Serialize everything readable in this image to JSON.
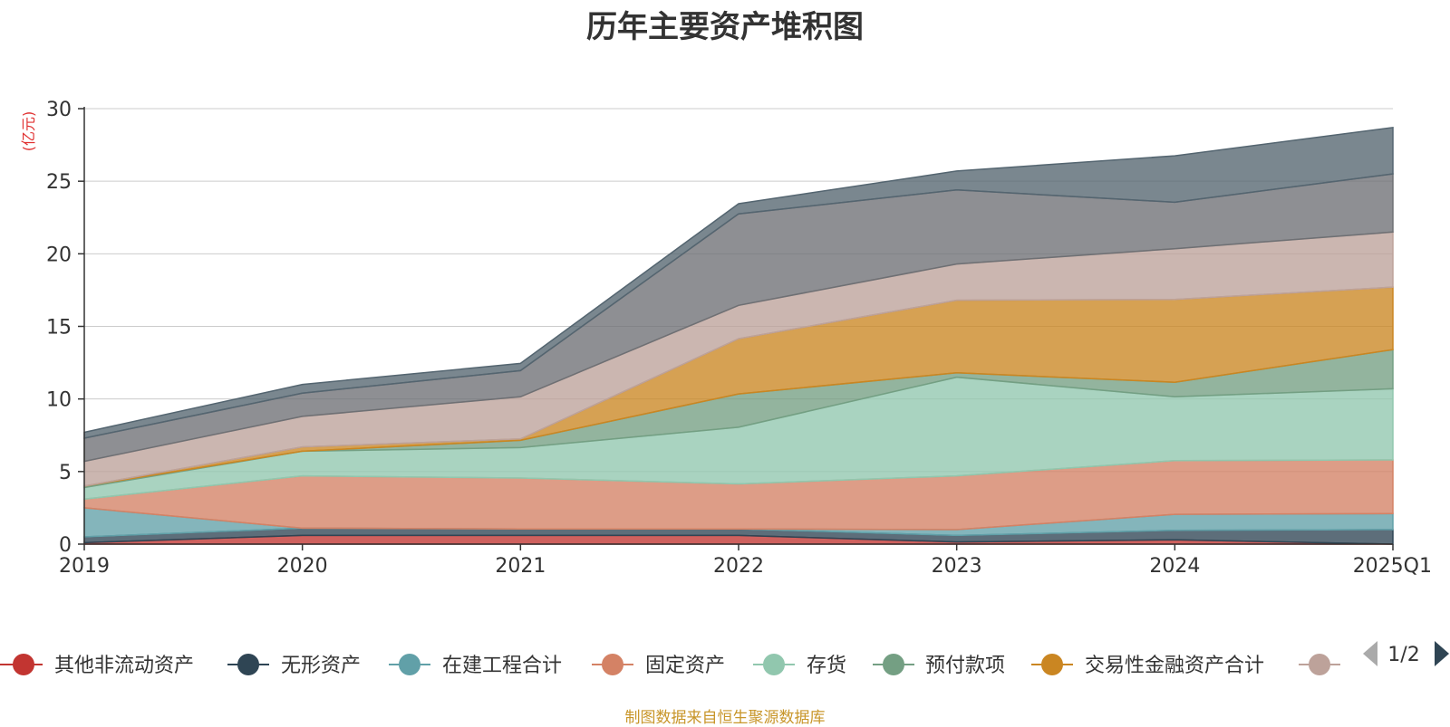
{
  "page": {
    "source_note": "制图数据来自恒生聚源数据库"
  },
  "legend": {
    "page_indicator": "1/2",
    "prev_icon": "triangle-left-icon",
    "next_icon": "triangle-right-icon"
  },
  "chart_data": {
    "type": "area",
    "stacked": true,
    "title": "历年主要资产堆积图",
    "xlabel": "",
    "ylabel": "(亿元)",
    "ylabel_color": "#e03030",
    "x": [
      "2019",
      "2020",
      "2021",
      "2022",
      "2023",
      "2024",
      "2025Q1"
    ],
    "ylim": [
      0,
      30
    ],
    "yticks": [
      0,
      5,
      10,
      15,
      20,
      25,
      30
    ],
    "grid": true,
    "legend_position": "bottom",
    "series": [
      {
        "name": "其他非流动资产",
        "color": "#c23531",
        "values": [
          0.1,
          0.6,
          0.6,
          0.6,
          0.15,
          0.3,
          0.0
        ]
      },
      {
        "name": "无形资产",
        "color": "#2f4554",
        "values": [
          0.4,
          0.5,
          0.45,
          0.45,
          0.45,
          0.65,
          1.0
        ]
      },
      {
        "name": "在建工程合计",
        "color": "#61a0a8",
        "values": [
          2.0,
          0.0,
          0.0,
          0.0,
          0.4,
          1.1,
          1.1
        ]
      },
      {
        "name": "固定资产",
        "color": "#d48265",
        "values": [
          0.6,
          3.6,
          3.5,
          3.1,
          3.7,
          3.7,
          3.7
        ]
      },
      {
        "name": "存货",
        "color": "#91c7ae",
        "values": [
          0.8,
          1.7,
          2.1,
          3.9,
          6.8,
          4.4,
          4.9
        ]
      },
      {
        "name": "预付款项",
        "color": "#749f83",
        "values": [
          0.1,
          0.0,
          0.5,
          2.3,
          0.3,
          1.0,
          2.7
        ]
      },
      {
        "name": "交易性金融资产合计",
        "color": "#ca8622",
        "values": [
          0.0,
          0.3,
          0.1,
          3.8,
          5.0,
          5.7,
          4.3
        ]
      },
      {
        "name": "",
        "color": "#bda29a",
        "values": [
          1.7,
          2.1,
          2.9,
          2.3,
          2.5,
          3.5,
          3.8
        ]
      },
      {
        "name": "",
        "color": "#6e7074",
        "values": [
          1.6,
          1.6,
          1.8,
          6.3,
          5.1,
          3.2,
          4.0
        ]
      },
      {
        "name": "",
        "color": "#546570",
        "values": [
          0.4,
          0.6,
          0.5,
          0.7,
          1.3,
          3.2,
          3.2
        ]
      }
    ]
  }
}
